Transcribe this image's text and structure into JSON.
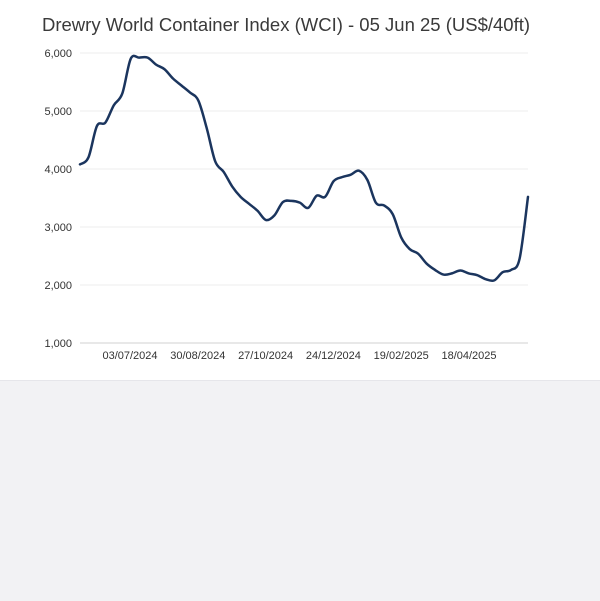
{
  "chart_data": {
    "type": "line",
    "title": "Drewry World Container Index (WCI) - 05 Jun 25 (US$/40ft)",
    "xlabel": "",
    "ylabel": "",
    "ylim": [
      1000,
      6000
    ],
    "yticks": [
      1000,
      2000,
      3000,
      4000,
      5000,
      6000
    ],
    "ytick_labels": [
      "1,000",
      "2,000",
      "3,000",
      "4,000",
      "5,000",
      "6,000"
    ],
    "xtick_labels": [
      "03/07/2024",
      "30/08/2024",
      "27/10/2024",
      "24/12/2024",
      "19/02/2025",
      "18/04/2025"
    ],
    "grid": "horizontal",
    "line_color": "#1b355e",
    "series": [
      {
        "values": [
          4080,
          4200,
          4740,
          4800,
          5100,
          5300,
          5900,
          5920,
          5920,
          5800,
          5720,
          5560,
          5440,
          5320,
          5180,
          4700,
          4130,
          3950,
          3700,
          3520,
          3400,
          3280,
          3120,
          3200,
          3430,
          3450,
          3420,
          3330,
          3540,
          3520,
          3790,
          3860,
          3900,
          3970,
          3810,
          3420,
          3370,
          3220,
          2820,
          2620,
          2540,
          2370,
          2260,
          2180,
          2200,
          2250,
          2200,
          2170,
          2100,
          2080,
          2220,
          2260,
          2450,
          3520
        ]
      }
    ]
  }
}
